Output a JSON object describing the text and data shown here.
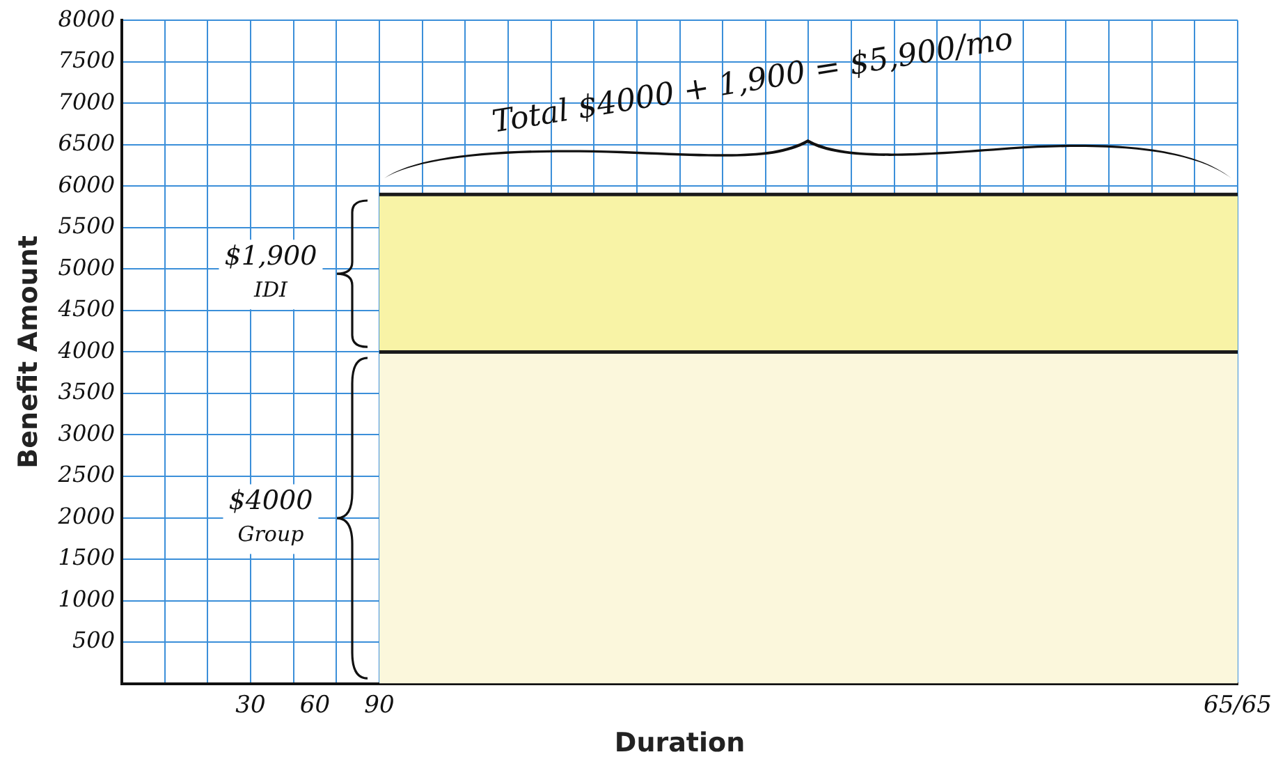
{
  "chart_data": {
    "type": "area",
    "stacked": true,
    "xlabel": "Duration",
    "ylabel": "Benefit Amount",
    "categories": [
      null,
      null,
      null,
      null,
      null,
      null,
      "30",
      null,
      null,
      "60",
      null,
      null,
      "90",
      null,
      null,
      null,
      null,
      null,
      null,
      null,
      null,
      null,
      null,
      null,
      null,
      null,
      null,
      null,
      null,
      null,
      null,
      null,
      null,
      null,
      null,
      null,
      null,
      null,
      null,
      null,
      null,
      null,
      null,
      null,
      null,
      null,
      null,
      null,
      null,
      null,
      null,
      null,
      "65/65"
    ],
    "series": [
      {
        "color": "#fbf7dc",
        "values": [
          null,
          null,
          null,
          null,
          null,
          null,
          null,
          null,
          null,
          null,
          null,
          null,
          4000,
          4000,
          4000,
          4000,
          4000,
          4000,
          4000,
          4000,
          4000,
          4000,
          4000,
          4000,
          4000,
          4000,
          4000,
          4000,
          4000,
          4000,
          4000,
          4000,
          4000,
          4000,
          4000,
          4000,
          4000,
          4000,
          4000,
          4000,
          4000,
          4000,
          4000,
          4000,
          4000,
          4000,
          4000,
          4000,
          4000,
          4000,
          4000,
          4000,
          4000
        ]
      },
      {
        "color": "#f8f3a6",
        "values": [
          null,
          null,
          null,
          null,
          null,
          null,
          null,
          null,
          null,
          null,
          null,
          null,
          1900,
          1900,
          1900,
          1900,
          1900,
          1900,
          1900,
          1900,
          1900,
          1900,
          1900,
          1900,
          1900,
          1900,
          1900,
          1900,
          1900,
          1900,
          1900,
          1900,
          1900,
          1900,
          1900,
          1900,
          1900,
          1900,
          1900,
          1900,
          1900,
          1900,
          1900,
          1900,
          1900,
          1900,
          1900,
          1900,
          1900,
          1900,
          1900,
          1900,
          1900
        ]
      }
    ],
    "ylim": [
      0,
      8000
    ],
    "yticks": [
      500,
      1000,
      1500,
      2000,
      2500,
      3000,
      3500,
      4000,
      4500,
      5000,
      5500,
      6000,
      6500,
      7000,
      7500,
      8000
    ],
    "grid": true,
    "legend": false,
    "annotations": [
      "Total $4000 + 1,900 = $5,900/mo",
      "$1,900 IDI",
      "$4000 Group"
    ]
  }
}
